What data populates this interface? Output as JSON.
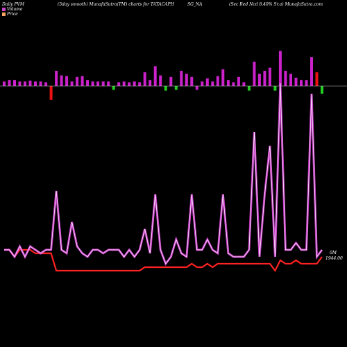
{
  "header": {
    "left": "Daily PVM",
    "middle": "(5day smooth) MunafaSutra(TM) charts for TATACAPH",
    "middle2": "SG_NA",
    "right": "(Sec Red Ncd 8.40% Sr.a) MunafaSutra.com"
  },
  "legend": [
    {
      "label": "Volume",
      "color": "#cc44cc"
    },
    {
      "label": "Price",
      "color": "#f4a460"
    }
  ],
  "colors": {
    "background": "#000000",
    "volume_up": "#cc22cc",
    "volume_down_red": "#ee1111",
    "volume_green": "#22cc22",
    "price_line": "#ff2222",
    "volume_line": "#dd44dd",
    "baseline": "#cccccc"
  },
  "chart_data": {
    "type": "bar",
    "volume_bars": {
      "values": [
        6,
        8,
        8,
        6,
        6,
        7,
        6,
        6,
        5,
        -18,
        20,
        14,
        13,
        6,
        12,
        13,
        8,
        6,
        6,
        6,
        6,
        -5,
        5,
        6,
        5,
        6,
        5,
        18,
        8,
        26,
        14,
        -6,
        12,
        -5,
        20,
        16,
        12,
        -5,
        6,
        10,
        6,
        13,
        22,
        8,
        5,
        12,
        5,
        -6,
        32,
        16,
        20,
        24,
        -6,
        46,
        20,
        16,
        11,
        8,
        8,
        38,
        18,
        -10
      ],
      "colors": [
        "m",
        "m",
        "m",
        "m",
        "m",
        "m",
        "m",
        "m",
        "m",
        "r",
        "m",
        "m",
        "m",
        "m",
        "m",
        "m",
        "m",
        "m",
        "m",
        "m",
        "m",
        "g",
        "m",
        "m",
        "m",
        "m",
        "m",
        "m",
        "m",
        "m",
        "m",
        "g",
        "m",
        "g",
        "m",
        "m",
        "m",
        "m",
        "m",
        "m",
        "m",
        "m",
        "m",
        "m",
        "m",
        "m",
        "m",
        "g",
        "m",
        "m",
        "m",
        "m",
        "g",
        "m",
        "m",
        "m",
        "m",
        "m",
        "m",
        "m",
        "r",
        "g"
      ]
    },
    "volume_line": [
      0.72,
      0.72,
      0.74,
      0.71,
      0.74,
      0.71,
      0.72,
      0.73,
      0.72,
      0.72,
      0.55,
      0.72,
      0.73,
      0.64,
      0.71,
      0.73,
      0.74,
      0.72,
      0.72,
      0.73,
      0.72,
      0.72,
      0.72,
      0.74,
      0.72,
      0.74,
      0.72,
      0.66,
      0.73,
      0.56,
      0.72,
      0.76,
      0.74,
      0.69,
      0.73,
      0.74,
      0.56,
      0.72,
      0.72,
      0.69,
      0.72,
      0.73,
      0.56,
      0.73,
      0.74,
      0.74,
      0.74,
      0.72,
      0.38,
      0.74,
      0.56,
      0.42,
      0.74,
      0.24,
      0.72,
      0.72,
      0.7,
      0.72,
      0.72,
      0.27,
      0.74,
      0.72
    ],
    "price_line": [
      0.72,
      0.72,
      0.74,
      0.72,
      0.72,
      0.72,
      0.73,
      0.73,
      0.73,
      0.73,
      0.78,
      0.78,
      0.78,
      0.78,
      0.78,
      0.78,
      0.78,
      0.78,
      0.78,
      0.78,
      0.78,
      0.78,
      0.78,
      0.78,
      0.78,
      0.78,
      0.78,
      0.77,
      0.77,
      0.77,
      0.77,
      0.77,
      0.77,
      0.77,
      0.77,
      0.77,
      0.76,
      0.77,
      0.77,
      0.76,
      0.77,
      0.76,
      0.76,
      0.76,
      0.76,
      0.76,
      0.76,
      0.76,
      0.76,
      0.76,
      0.76,
      0.76,
      0.78,
      0.75,
      0.76,
      0.76,
      0.75,
      0.76,
      0.76,
      0.76,
      0.76,
      0.74
    ],
    "labels": {
      "volume_value": "0M",
      "price_value": "1944.00"
    }
  }
}
